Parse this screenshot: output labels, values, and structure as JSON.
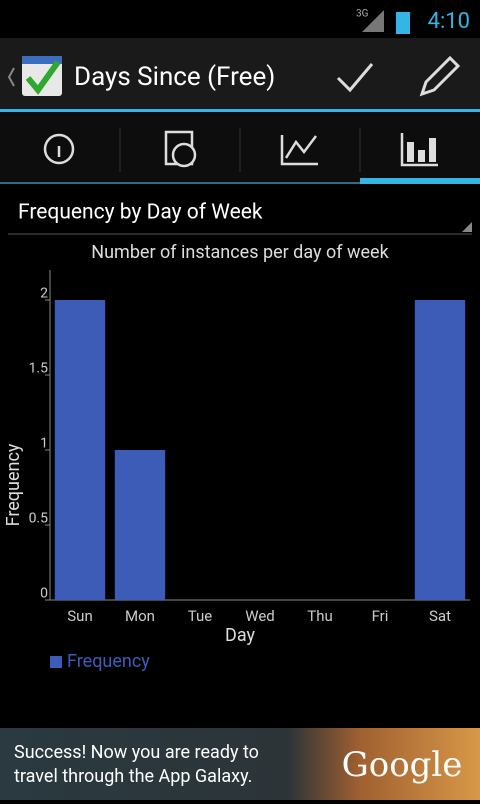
{
  "status_bar": {
    "network": "3G",
    "time": "4:10"
  },
  "action_bar": {
    "title": "Days Since (Free)"
  },
  "spinner": {
    "label": "Frequency by Day of Week"
  },
  "chart_data": {
    "type": "bar",
    "title": "Number of instances per day of week",
    "x_label": "Day",
    "y_label": "Frequency",
    "categories": [
      "Sun",
      "Mon",
      "Tue",
      "Wed",
      "Thu",
      "Fri",
      "Sat"
    ],
    "series": [
      {
        "name": "Frequency",
        "color": "#3d5cb8",
        "values": [
          2,
          1,
          0,
          0,
          0,
          0,
          2
        ]
      }
    ],
    "ylim": [
      0,
      2.2
    ],
    "yticks": [
      0,
      0.5,
      1,
      1.5,
      2
    ],
    "grid": false,
    "legend": "bottom-left"
  },
  "ad": {
    "line1": "Success! Now you are ready to",
    "line2": "travel through the App Galaxy.",
    "brand": "Google"
  }
}
